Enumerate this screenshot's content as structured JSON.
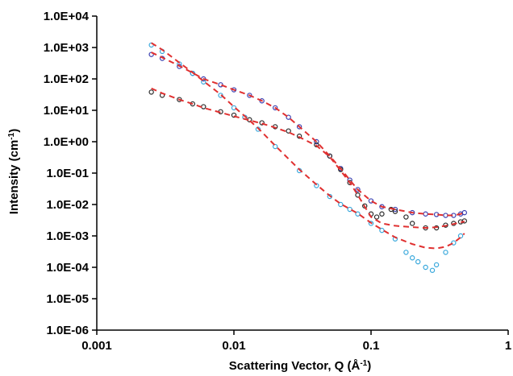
{
  "chart_data": {
    "type": "scatter",
    "x_scale": "log",
    "y_scale": "log",
    "xlim": [
      0.001,
      1
    ],
    "ylim": [
      1e-06,
      10000
    ],
    "x_ticks": [
      {
        "value": 0.001,
        "label": "0.001"
      },
      {
        "value": 0.01,
        "label": "0.01"
      },
      {
        "value": 0.1,
        "label": "0.1"
      },
      {
        "value": 1,
        "label": "1"
      }
    ],
    "y_ticks": [
      {
        "value": 10000,
        "label": "1.0E+04"
      },
      {
        "value": 1000,
        "label": "1.0E+03"
      },
      {
        "value": 100,
        "label": "1.0E+02"
      },
      {
        "value": 10,
        "label": "1.0E+01"
      },
      {
        "value": 1,
        "label": "1.0E+00"
      },
      {
        "value": 0.1,
        "label": "1.0E-01"
      },
      {
        "value": 0.01,
        "label": "1.0E-02"
      },
      {
        "value": 0.001,
        "label": "1.0E-03"
      },
      {
        "value": 0.0001,
        "label": "1.0E-04"
      },
      {
        "value": 1e-05,
        "label": "1.0E-05"
      },
      {
        "value": 1e-06,
        "label": "1.0E-06"
      }
    ],
    "xlabel": "Scattering Vector, Q (",
    "xlabel_unit": "Å",
    "xlabel_exp": "-1",
    "xlabel_end": ")",
    "ylabel": "Intensity (cm",
    "ylabel_exp": "-1",
    "ylabel_end": ")",
    "grid": false,
    "legend": "none",
    "series": [
      {
        "color": "#3a3fb0",
        "marker": "open-circle",
        "x": [
          0.0025,
          0.003,
          0.004,
          0.005,
          0.006,
          0.008,
          0.01,
          0.013,
          0.016,
          0.02,
          0.025,
          0.03,
          0.04,
          0.05,
          0.06,
          0.07,
          0.08,
          0.1,
          0.12,
          0.15,
          0.2,
          0.25,
          0.3,
          0.35,
          0.4,
          0.45,
          0.48
        ],
        "y": [
          600,
          450,
          250,
          150,
          100,
          65,
          45,
          30,
          20,
          12,
          6,
          3,
          1,
          0.35,
          0.14,
          0.06,
          0.03,
          0.013,
          0.0085,
          0.007,
          0.0055,
          0.005,
          0.0048,
          0.0045,
          0.0045,
          0.005,
          0.0055
        ]
      },
      {
        "color": "#2a2a2a",
        "marker": "open-circle",
        "x": [
          0.0025,
          0.003,
          0.004,
          0.005,
          0.006,
          0.008,
          0.01,
          0.013,
          0.016,
          0.02,
          0.025,
          0.03,
          0.04,
          0.05,
          0.06,
          0.07,
          0.08,
          0.09,
          0.1,
          0.11,
          0.12,
          0.14,
          0.15,
          0.18,
          0.2,
          0.25,
          0.3,
          0.35,
          0.4,
          0.45,
          0.48
        ],
        "y": [
          38,
          30,
          22,
          16,
          13,
          9,
          7,
          5,
          4,
          3,
          2.2,
          1.5,
          0.8,
          0.35,
          0.13,
          0.05,
          0.02,
          0.009,
          0.005,
          0.004,
          0.005,
          0.007,
          0.006,
          0.004,
          0.0025,
          0.0018,
          0.0018,
          0.0022,
          0.0025,
          0.0028,
          0.003
        ]
      },
      {
        "color": "#39a8dc",
        "marker": "open-circle",
        "x": [
          0.0025,
          0.003,
          0.004,
          0.005,
          0.006,
          0.008,
          0.01,
          0.012,
          0.015,
          0.02,
          0.03,
          0.04,
          0.05,
          0.06,
          0.07,
          0.08,
          0.1,
          0.12,
          0.15,
          0.18,
          0.2,
          0.22,
          0.25,
          0.28,
          0.3,
          0.35,
          0.4,
          0.45
        ],
        "y": [
          1200,
          750,
          300,
          150,
          80,
          30,
          12,
          6,
          2.5,
          0.7,
          0.12,
          0.04,
          0.018,
          0.01,
          0.007,
          0.005,
          0.0025,
          0.0015,
          0.0008,
          0.0003,
          0.0002,
          0.00015,
          0.0001,
          8e-05,
          0.00012,
          0.0003,
          0.0006,
          0.001
        ]
      }
    ],
    "fits": [
      {
        "color": "#e03030",
        "style": "dashed",
        "x": [
          0.0025,
          0.003,
          0.004,
          0.005,
          0.006,
          0.008,
          0.01,
          0.013,
          0.016,
          0.02,
          0.025,
          0.03,
          0.04,
          0.05,
          0.06,
          0.07,
          0.08,
          0.1,
          0.12,
          0.15,
          0.2,
          0.25,
          0.3,
          0.35,
          0.4,
          0.45,
          0.48
        ],
        "y": [
          700,
          480,
          260,
          155,
          100,
          65,
          45,
          30,
          20,
          12,
          6,
          3,
          1,
          0.35,
          0.14,
          0.06,
          0.03,
          0.013,
          0.0085,
          0.007,
          0.0055,
          0.005,
          0.0048,
          0.0045,
          0.0045,
          0.005,
          0.0055
        ]
      },
      {
        "color": "#e03030",
        "style": "dashed",
        "x": [
          0.0025,
          0.003,
          0.004,
          0.005,
          0.006,
          0.008,
          0.01,
          0.013,
          0.016,
          0.02,
          0.025,
          0.03,
          0.04,
          0.05,
          0.06,
          0.07,
          0.08,
          0.1,
          0.12,
          0.15,
          0.2,
          0.25,
          0.3,
          0.35,
          0.4,
          0.45,
          0.48
        ],
        "y": [
          50,
          35,
          22,
          16,
          12,
          8.5,
          6.5,
          4.8,
          3.8,
          2.8,
          2,
          1.4,
          0.75,
          0.33,
          0.12,
          0.05,
          0.02,
          0.004,
          0.0025,
          0.0021,
          0.0019,
          0.0018,
          0.0019,
          0.0021,
          0.0024,
          0.0027,
          0.0029
        ]
      },
      {
        "color": "#e03030",
        "style": "dashed",
        "x": [
          0.0025,
          0.003,
          0.004,
          0.005,
          0.006,
          0.008,
          0.01,
          0.012,
          0.015,
          0.02,
          0.03,
          0.04,
          0.05,
          0.06,
          0.07,
          0.08,
          0.1,
          0.12,
          0.15,
          0.2,
          0.25,
          0.3,
          0.35,
          0.4,
          0.45,
          0.48
        ],
        "y": [
          1400,
          850,
          330,
          160,
          85,
          32,
          13,
          6.5,
          2.7,
          0.75,
          0.13,
          0.043,
          0.019,
          0.0105,
          0.0072,
          0.0052,
          0.0026,
          0.0016,
          0.0009,
          0.00055,
          0.00042,
          0.0004,
          0.00045,
          0.0006,
          0.0009,
          0.0012
        ]
      }
    ]
  }
}
